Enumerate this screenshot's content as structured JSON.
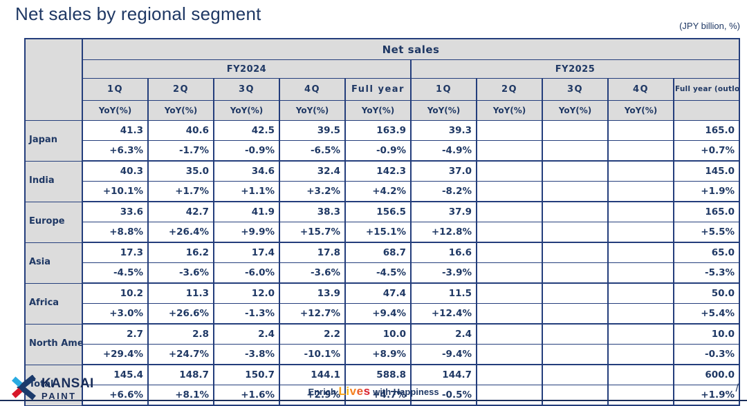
{
  "title": "Net sales by regional segment",
  "unit_note": "(JPY billion, %)",
  "table": {
    "main_header": "Net sales",
    "fiscal_years": [
      {
        "label": "FY2024"
      },
      {
        "label": "FY2025"
      }
    ],
    "quarter_headers": [
      "1Q",
      "2Q",
      "3Q",
      "4Q",
      "Full year",
      "1Q",
      "2Q",
      "3Q",
      "4Q",
      "Full year\n(outlook)"
    ],
    "yoy_headers": [
      "YoY(%)",
      "YoY(%)",
      "YoY(%)",
      "YoY(%)",
      "YoY(%)",
      "YoY(%)",
      "YoY(%)",
      "YoY(%)",
      "YoY(%)",
      ""
    ],
    "rows": [
      {
        "region": "Japan",
        "values": [
          "41.3",
          "40.6",
          "42.5",
          "39.5",
          "163.9",
          "39.3",
          "",
          "",
          "",
          "165.0"
        ],
        "yoy": [
          "+6.3%",
          "-1.7%",
          "-0.9%",
          "-6.5%",
          "-0.9%",
          "-4.9%",
          "",
          "",
          "",
          "+0.7%"
        ]
      },
      {
        "region": "India",
        "values": [
          "40.3",
          "35.0",
          "34.6",
          "32.4",
          "142.3",
          "37.0",
          "",
          "",
          "",
          "145.0"
        ],
        "yoy": [
          "+10.1%",
          "+1.7%",
          "+1.1%",
          "+3.2%",
          "+4.2%",
          "-8.2%",
          "",
          "",
          "",
          "+1.9%"
        ]
      },
      {
        "region": "Europe",
        "values": [
          "33.6",
          "42.7",
          "41.9",
          "38.3",
          "156.5",
          "37.9",
          "",
          "",
          "",
          "165.0"
        ],
        "yoy": [
          "+8.8%",
          "+26.4%",
          "+9.9%",
          "+15.7%",
          "+15.1%",
          "+12.8%",
          "",
          "",
          "",
          "+5.5%"
        ]
      },
      {
        "region": "Asia",
        "values": [
          "17.3",
          "16.2",
          "17.4",
          "17.8",
          "68.7",
          "16.6",
          "",
          "",
          "",
          "65.0"
        ],
        "yoy": [
          "-4.5%",
          "-3.6%",
          "-6.0%",
          "-3.6%",
          "-4.5%",
          "-3.9%",
          "",
          "",
          "",
          "-5.3%"
        ]
      },
      {
        "region": "Africa",
        "values": [
          "10.2",
          "11.3",
          "12.0",
          "13.9",
          "47.4",
          "11.5",
          "",
          "",
          "",
          "50.0"
        ],
        "yoy": [
          "+3.0%",
          "+26.6%",
          "-1.3%",
          "+12.7%",
          "+9.4%",
          "+12.4%",
          "",
          "",
          "",
          "+5.4%"
        ]
      },
      {
        "region": "North America",
        "values": [
          "2.7",
          "2.8",
          "2.4",
          "2.2",
          "10.0",
          "2.4",
          "",
          "",
          "",
          "10.0"
        ],
        "yoy": [
          "+29.4%",
          "+24.7%",
          "-3.8%",
          "-10.1%",
          "+8.9%",
          "-9.4%",
          "",
          "",
          "",
          "-0.3%"
        ]
      },
      {
        "region": "Total",
        "values": [
          "145.4",
          "148.7",
          "150.7",
          "144.1",
          "588.8",
          "144.7",
          "",
          "",
          "",
          "600.0"
        ],
        "yoy": [
          "+6.6%",
          "+8.1%",
          "+1.6%",
          "+2.9%",
          "+4.7%",
          "-0.5%",
          "",
          "",
          "",
          "+1.9%"
        ]
      }
    ]
  },
  "footer": {
    "logo_name": "KANSAI",
    "logo_sub": "PAINT",
    "slogan_enrich": "Enrich",
    "slogan_lives": "Lives",
    "slogan_rest": "with Happiness",
    "lives_colors": [
      "#f7a11a",
      "#fbb615",
      "#f58220",
      "#e95c28",
      "#d91f2d"
    ],
    "page_slash": "/",
    "colors": {
      "navy": "#1f3864",
      "header_gray": "#dcdcdc",
      "logo_blue": "#1b3a6b",
      "logo_cyan": "#29abe2",
      "logo_red": "#d7182a"
    }
  }
}
